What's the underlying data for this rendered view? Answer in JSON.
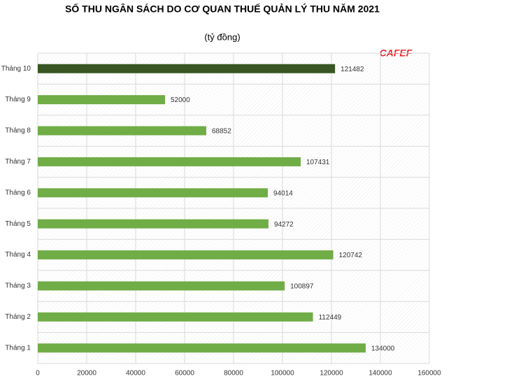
{
  "chart_data": {
    "type": "hbar",
    "title": "SỐ THU NGÂN SÁCH DO CƠ QUAN THUẾ QUẢN LÝ THU NĂM 2021",
    "subtitle": "(tỷ đồng)",
    "logo": "CAFEF",
    "categories": [
      "Tháng 10",
      "Tháng 9",
      "Tháng 8",
      "Tháng 7",
      "Tháng 6",
      "Tháng 5",
      "Tháng 4",
      "Tháng 3",
      "Tháng 2",
      "Tháng 1"
    ],
    "values": [
      121482,
      52000,
      68852,
      107431,
      94014,
      94272,
      120742,
      100897,
      112449,
      134000
    ],
    "colors": [
      "#375623",
      "#70ad47",
      "#70ad47",
      "#70ad47",
      "#70ad47",
      "#70ad47",
      "#70ad47",
      "#70ad47",
      "#70ad47",
      "#70ad47"
    ],
    "xlim": [
      0,
      160000
    ],
    "xticks": [
      0,
      20000,
      40000,
      60000,
      80000,
      100000,
      120000,
      140000,
      160000
    ],
    "grid": true
  }
}
